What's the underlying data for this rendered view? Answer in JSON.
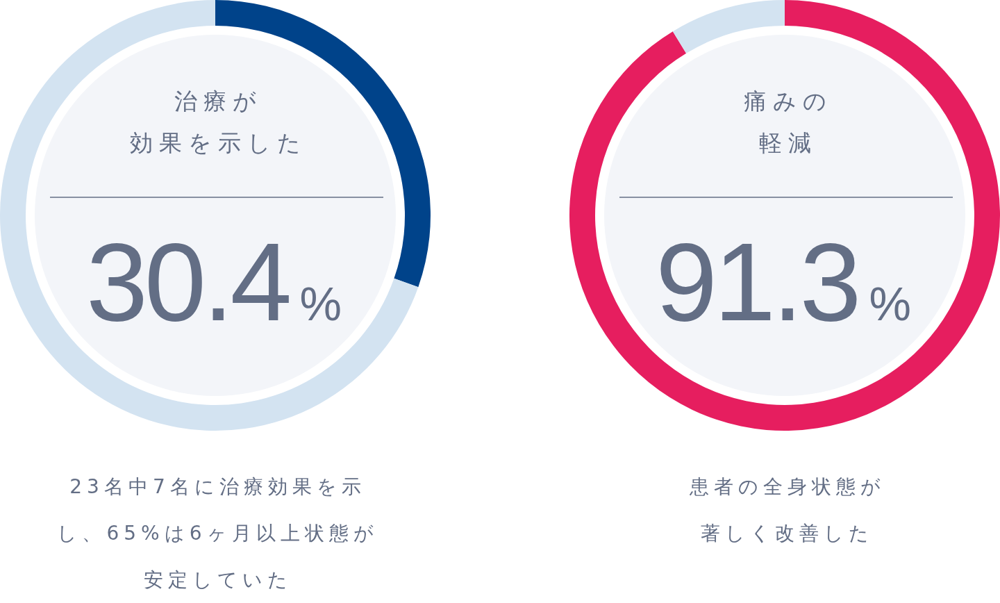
{
  "chart_data": [
    {
      "type": "donut",
      "title": "治療が効果を示した",
      "categories": [
        null,
        null
      ],
      "values": [
        30.4,
        69.6
      ],
      "colors": [
        "#00438a",
        "#d3e3f1"
      ],
      "value_labels": [
        "30.4%",
        null
      ],
      "annotations": [
        "23名中7名に治療効果を示",
        "し、65%は6ヶ月以上状態が",
        "安定していた"
      ]
    },
    {
      "type": "donut",
      "title": "痛みの軽減",
      "categories": [
        null,
        null
      ],
      "values": [
        91.3,
        8.7
      ],
      "colors": [
        "#e61e5f",
        "#d3e3f1"
      ],
      "value_labels": [
        "91.3%",
        null
      ],
      "annotations": [
        "患者の全身状態が",
        "著しく改善した"
      ]
    }
  ]
}
